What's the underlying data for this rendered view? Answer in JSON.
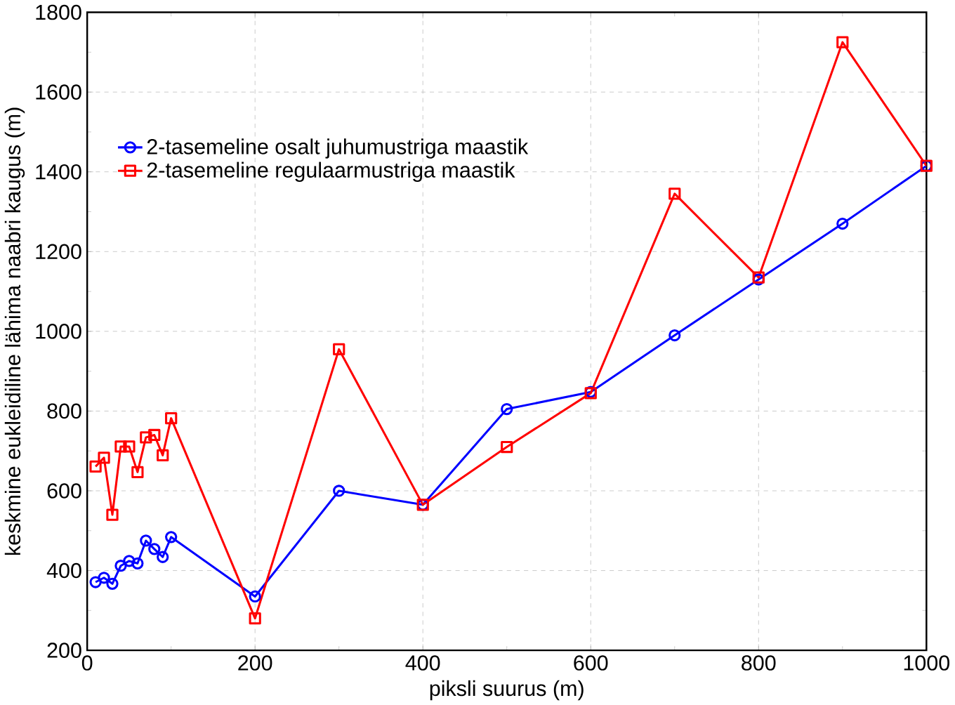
{
  "chart_data": {
    "type": "line",
    "xlabel": "piksli suurus (m)",
    "ylabel": "keskmine eukleidiline lähima naabri kaugus (m)",
    "x": [
      10,
      20,
      30,
      40,
      50,
      60,
      70,
      80,
      90,
      100,
      200,
      300,
      400,
      500,
      600,
      700,
      800,
      900,
      1000
    ],
    "series": [
      {
        "name": "2-tasemeline osalt juhumustriga maastik",
        "color": "#0000ff",
        "marker": "circle",
        "values": [
          371,
          382,
          367,
          412,
          424,
          418,
          475,
          454,
          434,
          484,
          335,
          600,
          565,
          805,
          848,
          990,
          1130,
          1270,
          1415
        ]
      },
      {
        "name": "2-tasemeline regulaarmustriga maastik",
        "color": "#ff0000",
        "marker": "square",
        "values": [
          661,
          683,
          540,
          711,
          711,
          647,
          734,
          740,
          689,
          782,
          280,
          955,
          565,
          710,
          845,
          1345,
          1135,
          1725,
          1415
        ]
      }
    ],
    "xlim": [
      0,
      1000
    ],
    "xticks": [
      0,
      200,
      400,
      600,
      800,
      1000
    ],
    "ylim": [
      200,
      1800
    ],
    "yticks": [
      200,
      400,
      600,
      800,
      1000,
      1200,
      1400,
      1600,
      1800
    ],
    "grid": true,
    "legend": "top left"
  }
}
